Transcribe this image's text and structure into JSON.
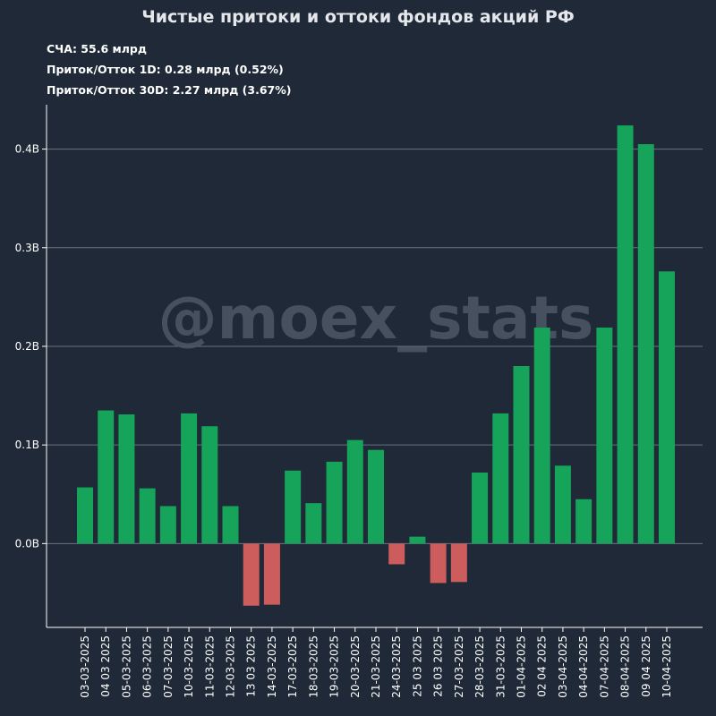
{
  "header": {
    "title": "Чистые притоки и оттоки фондов акций РФ",
    "nav_line": "СЧА: 55.6 млрд",
    "flow_1d_line": "Приток/Отток 1D: 0.28 млрд (0.52%)",
    "flow_30d_line": "Приток/Отток 30D: 2.27 млрд (3.67%)"
  },
  "watermark": "@moex_stats",
  "colors": {
    "background": "#1f2937",
    "positive": "#16a35a",
    "negative": "#cd5c5c",
    "grid": "#6b7280",
    "axis": "#ffffff"
  },
  "chart_data": {
    "type": "bar",
    "title": "Чистые притоки и оттоки фондов акций РФ",
    "xlabel": "",
    "ylabel": "",
    "grid": true,
    "ylim": [
      -0.085,
      0.445
    ],
    "yticks": [
      0.0,
      0.1,
      0.2,
      0.3,
      0.4
    ],
    "ytick_labels": [
      "0.0B",
      "0.1B",
      "0.2B",
      "0.3B",
      "0.4B"
    ],
    "categories": [
      "03-03-2025",
      "04 03 2025",
      "05-03-2025",
      "06-03-2025",
      "07-03-2025",
      "10-03-2025",
      "11-03-2025",
      "12-03-2025",
      "13 03 2025",
      "14-03-2025",
      "17-03-2025",
      "18-03-2025",
      "19-03-2025",
      "20-03-2025",
      "21-03-2025",
      "24-03-2025",
      "25 03 2025",
      "26 03 2025",
      "27-03-2025",
      "28-03-2025",
      "31-03-2025",
      "01-04-2025",
      "02 04 2025",
      "03-04-2025",
      "04-04-2025",
      "07-04-2025",
      "08-04-2025",
      "09 04 2025",
      "10-04-2025"
    ],
    "values": [
      0.057,
      0.135,
      0.131,
      0.056,
      0.038,
      0.132,
      0.119,
      0.038,
      -0.063,
      -0.062,
      0.074,
      0.041,
      0.083,
      0.105,
      0.095,
      -0.021,
      0.007,
      -0.04,
      -0.039,
      0.072,
      0.132,
      0.18,
      0.219,
      0.079,
      0.045,
      0.219,
      0.424,
      0.405,
      0.276
    ]
  }
}
